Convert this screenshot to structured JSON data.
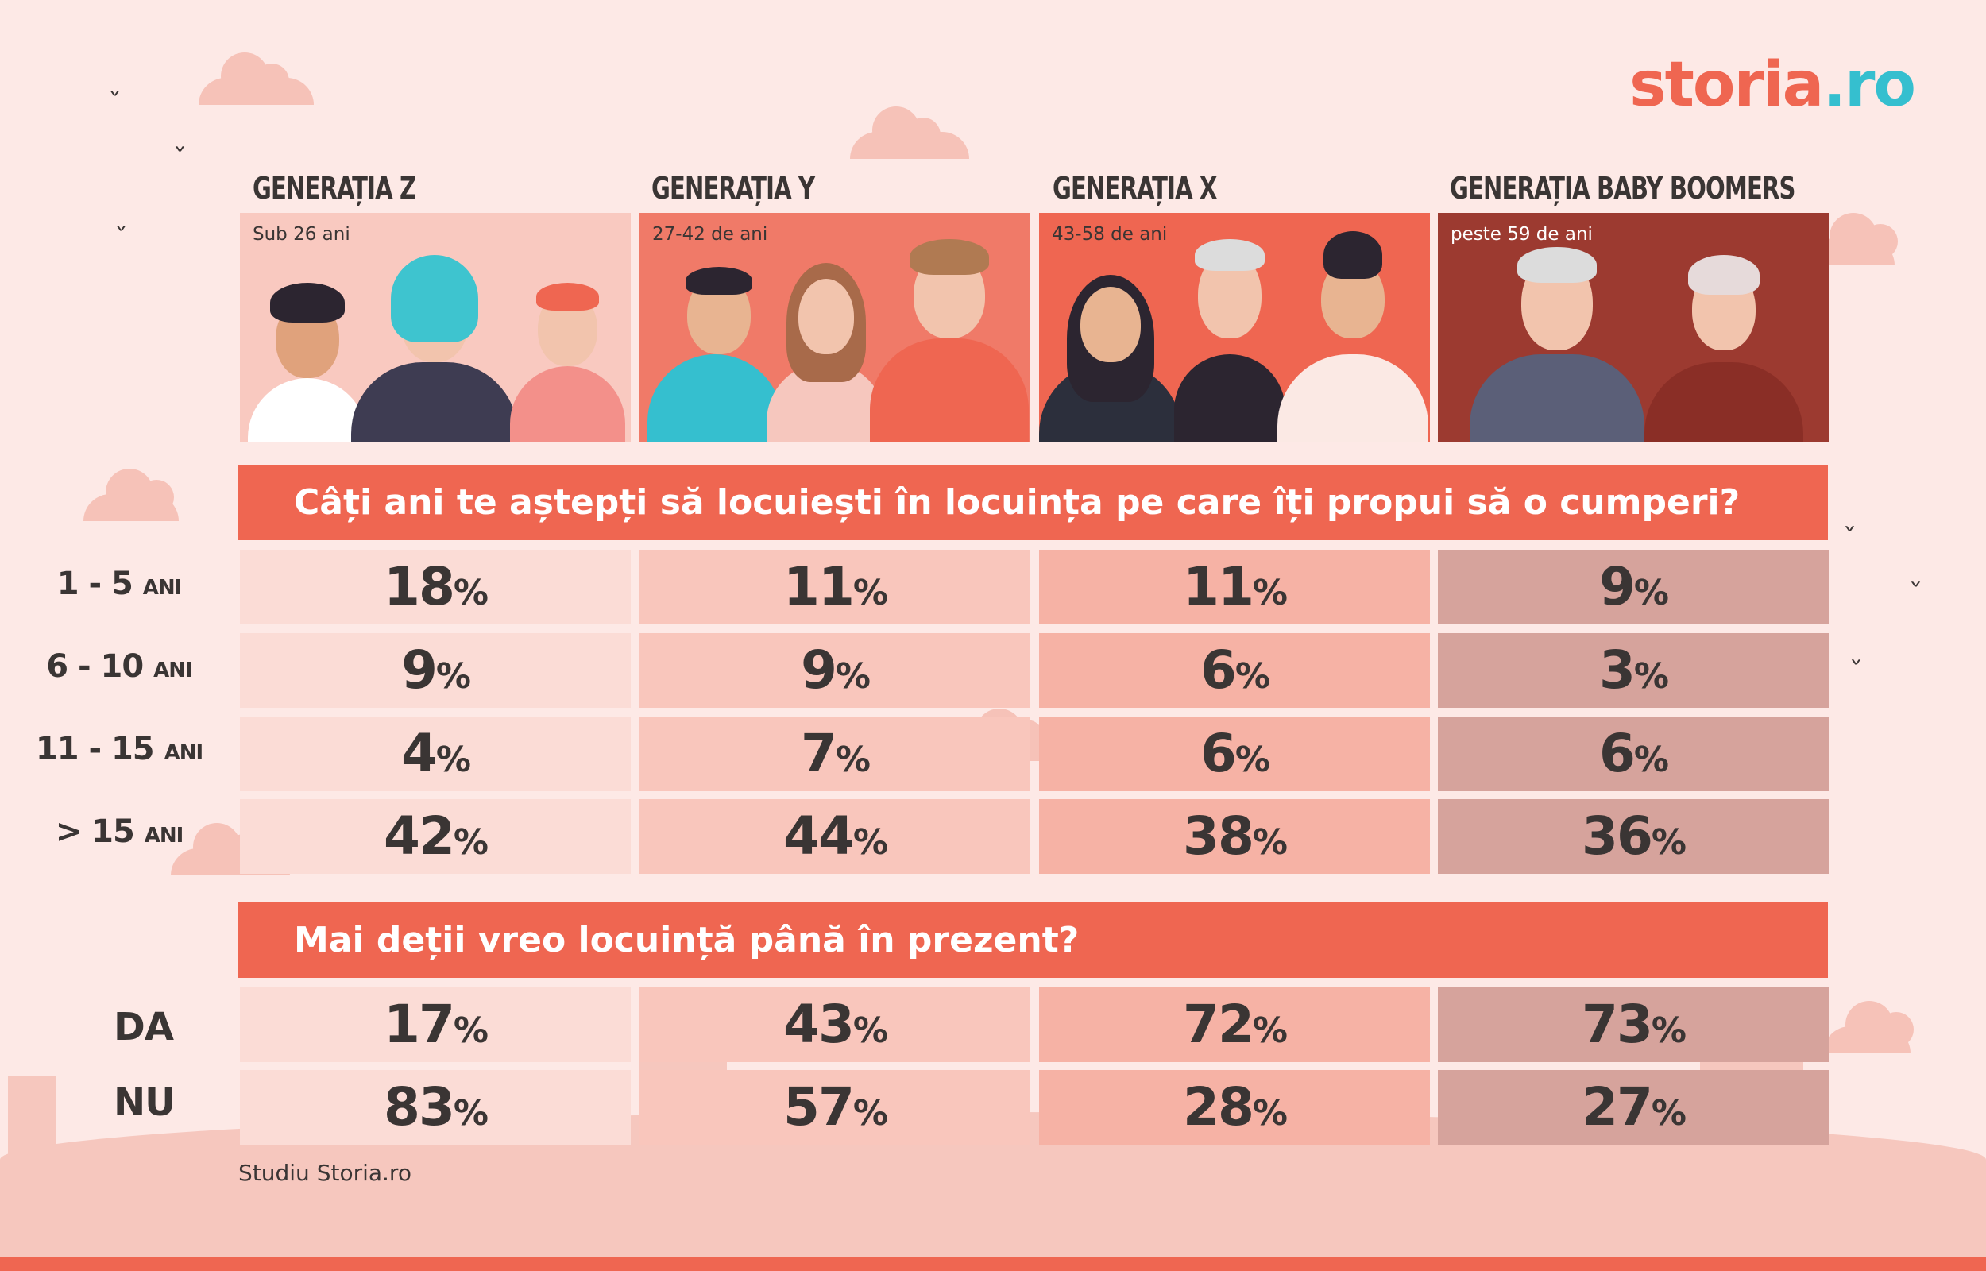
{
  "brand": {
    "part1": "storia",
    "part2": ".ro"
  },
  "generations": [
    {
      "title": "GENERAȚIA Z",
      "age": "Sub 26 ani"
    },
    {
      "title": "GENERAȚIA Y",
      "age": "27-42 de ani"
    },
    {
      "title": "GENERAȚIA X",
      "age": "43-58 de ani"
    },
    {
      "title": "GENERAȚIA BABY BOOMERS",
      "age": "peste 59 de ani"
    }
  ],
  "q1": {
    "question": "Câți ani te aștepți să locuiești în locuința pe care îți propui să o cumperi?",
    "rows": [
      {
        "label_num": "1 - 5",
        "label_unit": "ANI",
        "values": [
          "18",
          "11",
          "11",
          "9"
        ]
      },
      {
        "label_num": "6 - 10",
        "label_unit": "ANI",
        "values": [
          "9",
          "9",
          "6",
          "3"
        ]
      },
      {
        "label_num": "11 - 15",
        "label_unit": "ANI",
        "values": [
          "4",
          "7",
          "6",
          "6"
        ]
      },
      {
        "label_num": "> 15",
        "label_unit": "ANI",
        "values": [
          "42",
          "44",
          "38",
          "36"
        ]
      }
    ]
  },
  "q2": {
    "question": "Mai deții vreo locuință până în prezent?",
    "rows": [
      {
        "label": "DA",
        "values": [
          "17",
          "43",
          "72",
          "73"
        ]
      },
      {
        "label": "NU",
        "values": [
          "83",
          "57",
          "28",
          "27"
        ]
      }
    ]
  },
  "pct_symbol": "%",
  "source": "Studiu Storia.ro",
  "colors": {
    "accent": "#ef6651",
    "brand_teal": "#35bfcf",
    "text": "#3a3534"
  }
}
